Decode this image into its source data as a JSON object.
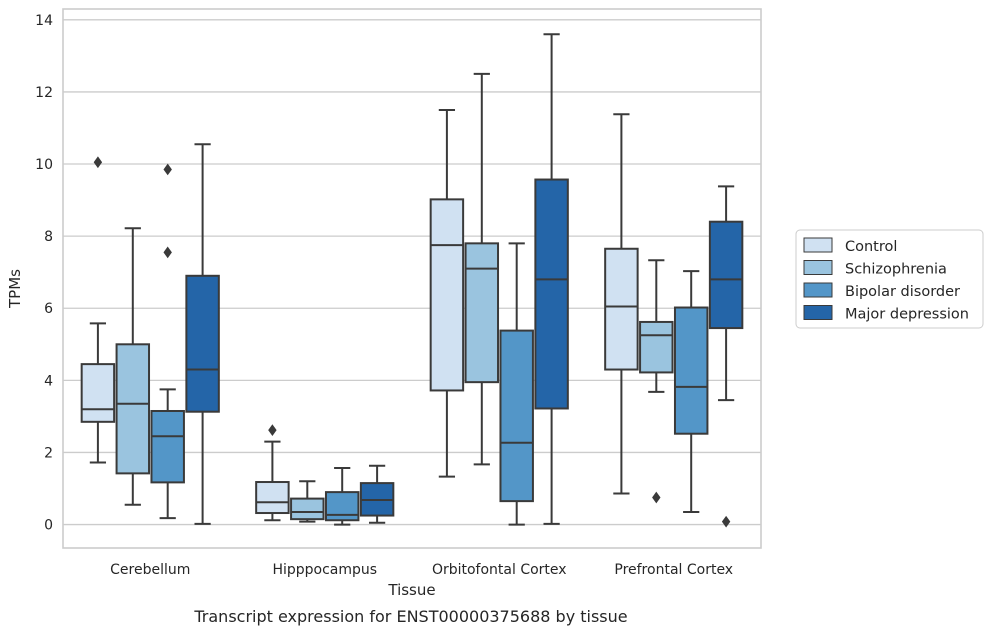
{
  "chart_data": {
    "type": "box",
    "xlabel": "Tissue",
    "ylabel": "TPMs",
    "caption": "Transcript expression for ENST00000375688 by tissue",
    "ylim": [
      -0.65,
      14.3
    ],
    "yticks": [
      0,
      2,
      4,
      6,
      8,
      10,
      12,
      14
    ],
    "grid": "horizontal",
    "legend_position": "right",
    "categories": [
      "Cerebellum",
      "Hipppocampus",
      "Orbitofontal Cortex",
      "Prefrontal Cortex"
    ],
    "series": [
      {
        "name": "Control",
        "color": "#d0e1f2",
        "boxes": [
          {
            "whislo": 1.72,
            "q1": 2.85,
            "med": 3.2,
            "q3": 4.45,
            "whishi": 5.58,
            "fliers": [
              10.05
            ]
          },
          {
            "whislo": 0.12,
            "q1": 0.32,
            "med": 0.62,
            "q3": 1.18,
            "whishi": 2.3,
            "fliers": [
              2.62
            ]
          },
          {
            "whislo": 1.33,
            "q1": 3.72,
            "med": 7.75,
            "q3": 9.02,
            "whishi": 11.5,
            "fliers": []
          },
          {
            "whislo": 0.86,
            "q1": 4.3,
            "med": 6.05,
            "q3": 7.65,
            "whishi": 11.38,
            "fliers": []
          }
        ]
      },
      {
        "name": "Schizophrenia",
        "color": "#9ac4df",
        "boxes": [
          {
            "whislo": 0.55,
            "q1": 1.42,
            "med": 3.35,
            "q3": 5.0,
            "whishi": 8.22,
            "fliers": []
          },
          {
            "whislo": 0.08,
            "q1": 0.15,
            "med": 0.35,
            "q3": 0.72,
            "whishi": 1.2,
            "fliers": []
          },
          {
            "whislo": 1.67,
            "q1": 3.95,
            "med": 7.1,
            "q3": 7.8,
            "whishi": 12.5,
            "fliers": []
          },
          {
            "whislo": 3.68,
            "q1": 4.22,
            "med": 5.25,
            "q3": 5.62,
            "whishi": 7.33,
            "fliers": [
              0.75
            ]
          }
        ]
      },
      {
        "name": "Bipolar disorder",
        "color": "#5396c8",
        "boxes": [
          {
            "whislo": 0.18,
            "q1": 1.17,
            "med": 2.45,
            "q3": 3.15,
            "whishi": 3.75,
            "fliers": [
              9.85,
              7.55
            ]
          },
          {
            "whislo": 0.0,
            "q1": 0.12,
            "med": 0.27,
            "q3": 0.9,
            "whishi": 1.57,
            "fliers": []
          },
          {
            "whislo": 0.0,
            "q1": 0.65,
            "med": 2.27,
            "q3": 5.38,
            "whishi": 7.8,
            "fliers": []
          },
          {
            "whislo": 0.35,
            "q1": 2.52,
            "med": 3.82,
            "q3": 6.02,
            "whishi": 7.03,
            "fliers": []
          }
        ]
      },
      {
        "name": "Major depression",
        "color": "#2465a8",
        "boxes": [
          {
            "whislo": 0.02,
            "q1": 3.13,
            "med": 4.3,
            "q3": 6.9,
            "whishi": 10.55,
            "fliers": []
          },
          {
            "whislo": 0.05,
            "q1": 0.25,
            "med": 0.68,
            "q3": 1.15,
            "whishi": 1.63,
            "fliers": []
          },
          {
            "whislo": 0.02,
            "q1": 3.22,
            "med": 6.8,
            "q3": 9.57,
            "whishi": 13.6,
            "fliers": []
          },
          {
            "whislo": 3.45,
            "q1": 5.45,
            "med": 6.8,
            "q3": 8.4,
            "whishi": 9.38,
            "fliers": [
              0.08
            ]
          }
        ]
      }
    ]
  }
}
